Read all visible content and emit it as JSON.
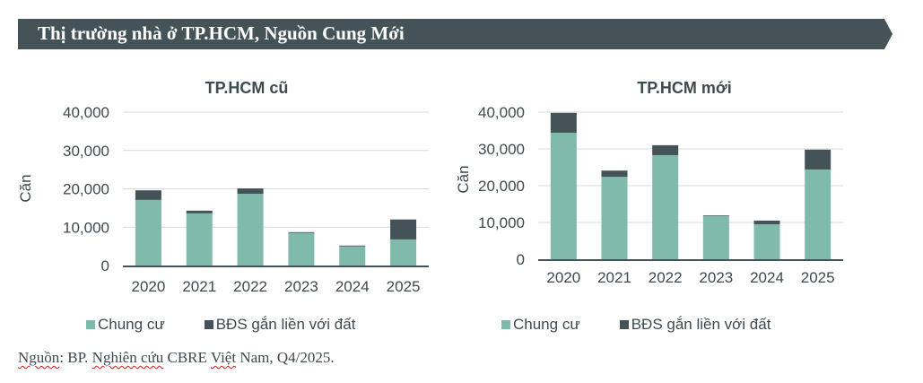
{
  "banner": {
    "title": "Thị trường nhà ở TP.HCM, Nguồn Cung Mới"
  },
  "colors": {
    "banner": "#435358",
    "chung_cu": "#7fbaaa",
    "bds": "#435358",
    "grid": "#d9d9d9",
    "axis": "#435358",
    "text": "#3d4a4e"
  },
  "legend": [
    {
      "label": "Chung cư",
      "color": "#7fbaaa"
    },
    {
      "label": "BĐS gắn liền với đất",
      "color": "#435358"
    }
  ],
  "source": {
    "parts": [
      "Nguồn",
      ": BP. ",
      "Nghiên cứu",
      " CBRE ",
      "Việt",
      " Nam, Q4/2025."
    ]
  },
  "chart_data": [
    {
      "type": "bar",
      "stacked": true,
      "title": "TP.HCM cũ",
      "xlabel": "",
      "ylabel": "Căn",
      "categories": [
        "2020",
        "2021",
        "2022",
        "2023",
        "2024",
        "2025"
      ],
      "ylim": [
        0,
        40000
      ],
      "yticks": [
        0,
        10000,
        20000,
        30000,
        40000
      ],
      "ytick_labels": [
        "0",
        "10,000",
        "20,000",
        "30,000",
        "40,000"
      ],
      "grid": true,
      "legend_position": "bottom",
      "series": [
        {
          "name": "Chung cư",
          "values": [
            17100,
            13600,
            18700,
            8500,
            5000,
            6800
          ]
        },
        {
          "name": "BĐS gắn liền với đất",
          "values": [
            2500,
            700,
            1400,
            200,
            200,
            5200
          ]
        }
      ]
    },
    {
      "type": "bar",
      "stacked": true,
      "title": "TP.HCM mới",
      "xlabel": "",
      "ylabel": "Căn",
      "categories": [
        "2020",
        "2021",
        "2022",
        "2023",
        "2024",
        "2025"
      ],
      "ylim": [
        0,
        40000
      ],
      "yticks": [
        0,
        10000,
        20000,
        30000,
        40000
      ],
      "ytick_labels": [
        "0",
        "10,000",
        "20,000",
        "30,000",
        "40,000"
      ],
      "grid": true,
      "legend_position": "bottom",
      "series": [
        {
          "name": "Chung cư",
          "values": [
            34400,
            22400,
            28300,
            11700,
            9500,
            24400
          ]
        },
        {
          "name": "BĐS gắn liền với đất",
          "values": [
            5400,
            1700,
            2700,
            200,
            1000,
            5400
          ]
        }
      ]
    }
  ]
}
